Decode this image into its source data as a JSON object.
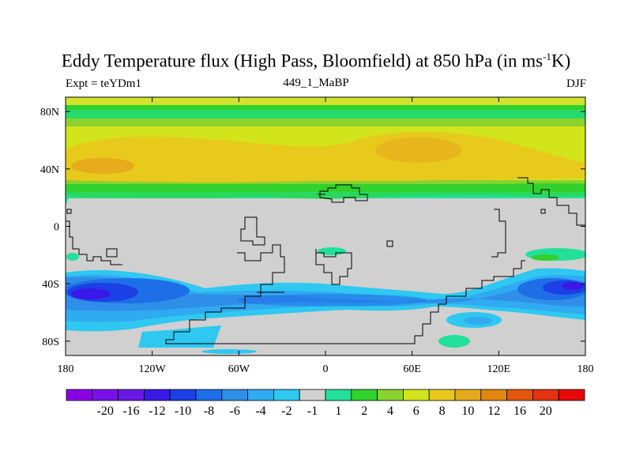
{
  "title": {
    "main": "Eddy Temperature flux (High Pass, Bloomfield) at 850 hPa (in ms",
    "sup": "-1",
    "tail": "K)"
  },
  "subtitle_left": "Expt = teYDm1",
  "subtitle_center": "449_1_MaBP",
  "subtitle_right": "DJF",
  "chart_data": {
    "type": "heatmap",
    "title": "Eddy Temperature flux (High Pass, Bloomfield) at 850 hPa (in ms-1K)",
    "xlim": [
      -180,
      180
    ],
    "ylim": [
      -90,
      90
    ],
    "x_ticks": [
      {
        "value": -180,
        "label": "180"
      },
      {
        "value": -120,
        "label": "120W"
      },
      {
        "value": -60,
        "label": "60W"
      },
      {
        "value": 0,
        "label": "0"
      },
      {
        "value": 60,
        "label": "60E"
      },
      {
        "value": 120,
        "label": "120E"
      },
      {
        "value": 180,
        "label": "180"
      }
    ],
    "y_ticks": [
      {
        "value": 80,
        "label": "80N"
      },
      {
        "value": 40,
        "label": "40N"
      },
      {
        "value": 0,
        "label": "0"
      },
      {
        "value": -40,
        "label": "40S"
      },
      {
        "value": -80,
        "label": "80S"
      }
    ],
    "colorbar": {
      "colors": [
        "#8a00e6",
        "#7a10e8",
        "#6a18e6",
        "#3a18e8",
        "#1a40e6",
        "#1e6ee8",
        "#2f8fe8",
        "#30aaf0",
        "#2ec8f0",
        "#d0d0d0",
        "#22e09a",
        "#31d12e",
        "#8ad22e",
        "#d2e41c",
        "#e8c81c",
        "#e6a81c",
        "#e2860e",
        "#e2560e",
        "#e2320e",
        "#e80808"
      ],
      "labels": [
        "-20",
        "-16",
        "-12",
        "-10",
        "-8",
        "-6",
        "-4",
        "-2",
        "-1",
        "1",
        "2",
        "4",
        "6",
        "8",
        "10",
        "12",
        "16",
        "20"
      ]
    },
    "bands": [
      {
        "lat_range": [
          50,
          82
        ],
        "level": "2 to 6",
        "description": "northern high-latitude green band"
      },
      {
        "lat_range": [
          30,
          62
        ],
        "level": "8 to 12",
        "description": "northern storm-track yellow/orange band, max near 140W and 40E"
      },
      {
        "lat_range": [
          -60,
          -35
        ],
        "level": "-12 to -2",
        "description": "southern storm-track blue band, min near 170W and 160E"
      }
    ]
  },
  "colors": {
    "land_neutral": "#d0d0d0",
    "outline": "#000000"
  }
}
